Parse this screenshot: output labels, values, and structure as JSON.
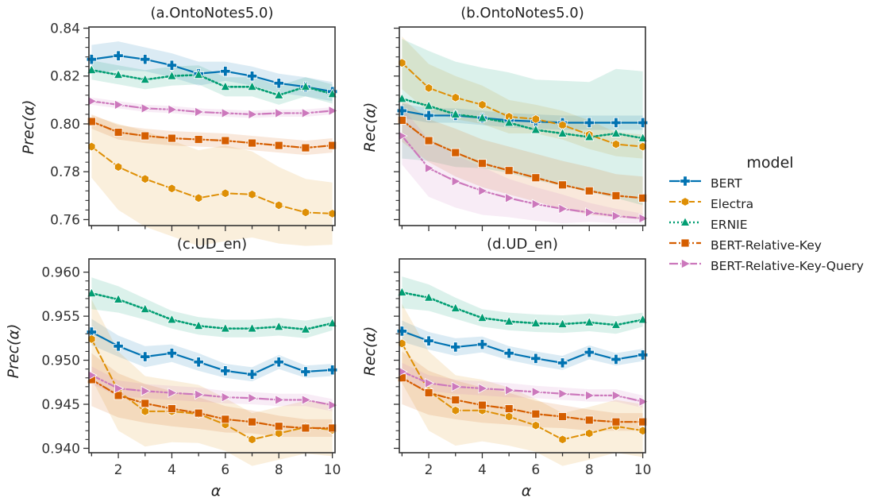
{
  "colors": {
    "BERT": "#0173b2",
    "Electra": "#de8f05",
    "ERNIE": "#029e73",
    "BERT-Relative-Key": "#d55e00",
    "BERT-Relative-Key-Query": "#cc78bc"
  },
  "legend": {
    "title": "model",
    "entries": [
      "BERT",
      "Electra",
      "ERNIE",
      "BERT-Relative-Key",
      "BERT-Relative-Key-Query"
    ]
  },
  "chart_data": [
    {
      "type": "line",
      "title": "(a.OntoNotes5.0)",
      "xlabel": "",
      "ylabel": "Prec(α)",
      "x": [
        1,
        2,
        3,
        4,
        5,
        6,
        7,
        8,
        9,
        10
      ],
      "xlim": [
        0.9,
        10.1
      ],
      "ylim": [
        0.7575,
        0.8405
      ],
      "xticks": [],
      "yticks": [
        0.76,
        0.78,
        0.8,
        0.82,
        0.84
      ],
      "ytick_labels": [
        "0.76",
        "0.78",
        "0.80",
        "0.82",
        "0.84"
      ],
      "series": [
        {
          "name": "BERT",
          "values": [
            0.827,
            0.8285,
            0.827,
            0.8245,
            0.821,
            0.822,
            0.82,
            0.817,
            0.8155,
            0.8135
          ],
          "band": [
            0.006,
            0.006,
            0.005,
            0.005,
            0.005,
            0.004,
            0.004,
            0.004,
            0.004,
            0.004
          ]
        },
        {
          "name": "Electra",
          "values": [
            0.7905,
            0.782,
            0.777,
            0.773,
            0.769,
            0.771,
            0.7705,
            0.766,
            0.763,
            0.7625
          ],
          "band": [
            0.013,
            0.018,
            0.02,
            0.02,
            0.02,
            0.02,
            0.018,
            0.016,
            0.014,
            0.013
          ]
        },
        {
          "name": "ERNIE",
          "values": [
            0.8225,
            0.8205,
            0.8185,
            0.82,
            0.8205,
            0.8155,
            0.8155,
            0.812,
            0.8155,
            0.8125
          ],
          "band": [
            0.004,
            0.004,
            0.004,
            0.004,
            0.004,
            0.004,
            0.004,
            0.004,
            0.004,
            0.004
          ]
        },
        {
          "name": "BERT-Relative-Key",
          "values": [
            0.801,
            0.7965,
            0.795,
            0.794,
            0.7935,
            0.793,
            0.792,
            0.791,
            0.79,
            0.791
          ],
          "band": [
            0.003,
            0.003,
            0.003,
            0.003,
            0.003,
            0.003,
            0.003,
            0.003,
            0.003,
            0.003
          ]
        },
        {
          "name": "BERT-Relative-Key-Query",
          "values": [
            0.8095,
            0.808,
            0.8065,
            0.806,
            0.805,
            0.8045,
            0.804,
            0.8045,
            0.8045,
            0.8055
          ],
          "band": [
            0.0015,
            0.0015,
            0.0015,
            0.0015,
            0.0015,
            0.0015,
            0.0015,
            0.0015,
            0.0015,
            0.0015
          ]
        }
      ]
    },
    {
      "type": "line",
      "title": "(b.OntoNotes5.0)",
      "xlabel": "",
      "ylabel": "Rec(α)",
      "x": [
        1,
        2,
        3,
        4,
        5,
        6,
        7,
        8,
        9,
        10
      ],
      "xlim": [
        0.9,
        10.1
      ],
      "ylim": [
        0.7575,
        0.8405
      ],
      "xticks": [],
      "yticks": [],
      "series": [
        {
          "name": "BERT",
          "values": [
            0.8055,
            0.8035,
            0.8035,
            0.8025,
            0.8015,
            0.801,
            0.8005,
            0.8005,
            0.8005,
            0.8005
          ],
          "band": [
            0.003,
            0.003,
            0.003,
            0.003,
            0.003,
            0.003,
            0.003,
            0.003,
            0.003,
            0.003
          ]
        },
        {
          "name": "Electra",
          "values": [
            0.8255,
            0.815,
            0.811,
            0.808,
            0.803,
            0.802,
            0.7995,
            0.7955,
            0.7915,
            0.7905
          ],
          "band": [
            0.011,
            0.01,
            0.009,
            0.008,
            0.007,
            0.006,
            0.006,
            0.006,
            0.005,
            0.005
          ]
        },
        {
          "name": "ERNIE",
          "values": [
            0.8105,
            0.8075,
            0.804,
            0.8025,
            0.8005,
            0.7975,
            0.796,
            0.7945,
            0.796,
            0.794
          ],
          "band": [
            0.025,
            0.023,
            0.022,
            0.021,
            0.021,
            0.021,
            0.022,
            0.023,
            0.027,
            0.028
          ]
        },
        {
          "name": "BERT-Relative-Key",
          "values": [
            0.8015,
            0.793,
            0.788,
            0.7835,
            0.7805,
            0.7775,
            0.7745,
            0.772,
            0.77,
            0.769
          ],
          "band": [
            0.009,
            0.009,
            0.01,
            0.01,
            0.01,
            0.01,
            0.01,
            0.01,
            0.009,
            0.009
          ]
        },
        {
          "name": "BERT-Relative-Key-Query",
          "values": [
            0.795,
            0.7815,
            0.776,
            0.772,
            0.769,
            0.7665,
            0.7645,
            0.763,
            0.7615,
            0.7605
          ],
          "band": [
            0.012,
            0.012,
            0.011,
            0.01,
            0.008,
            0.007,
            0.006,
            0.004,
            0.003,
            0.002
          ]
        }
      ]
    },
    {
      "type": "line",
      "title": "(c.UD_en)",
      "xlabel": "α",
      "ylabel": "Prec(α)",
      "x": [
        1,
        2,
        3,
        4,
        5,
        6,
        7,
        8,
        9,
        10
      ],
      "xlim": [
        0.9,
        10.1
      ],
      "ylim": [
        0.9395,
        0.9615
      ],
      "xticks": [
        2,
        4,
        6,
        8,
        10
      ],
      "xtick_labels": [
        "2",
        "4",
        "6",
        "8",
        "10"
      ],
      "yticks": [
        0.94,
        0.945,
        0.95,
        0.955,
        0.96
      ],
      "ytick_labels": [
        "0.940",
        "0.945",
        "0.950",
        "0.955",
        "0.960"
      ],
      "series": [
        {
          "name": "BERT",
          "values": [
            0.9532,
            0.9516,
            0.9504,
            0.9508,
            0.9498,
            0.9488,
            0.9484,
            0.9498,
            0.9487,
            0.9489
          ],
          "band": [
            0.0015,
            0.0012,
            0.0012,
            0.001,
            0.001,
            0.0008,
            0.0008,
            0.0008,
            0.0007,
            0.0007
          ]
        },
        {
          "name": "Electra",
          "values": [
            0.9524,
            0.9465,
            0.9442,
            0.9442,
            0.9439,
            0.9427,
            0.941,
            0.9417,
            0.9424,
            0.9421
          ],
          "band": [
            0.0045,
            0.0045,
            0.004,
            0.0035,
            0.0033,
            0.003,
            0.003,
            0.003,
            0.003,
            0.003
          ]
        },
        {
          "name": "ERNIE",
          "values": [
            0.9576,
            0.9569,
            0.9558,
            0.9546,
            0.9539,
            0.9536,
            0.9536,
            0.9538,
            0.9535,
            0.9542
          ],
          "band": [
            0.0018,
            0.0015,
            0.0012,
            0.001,
            0.001,
            0.001,
            0.001,
            0.001,
            0.001,
            0.0008
          ]
        },
        {
          "name": "BERT-Relative-Key",
          "values": [
            0.9478,
            0.946,
            0.9451,
            0.9445,
            0.944,
            0.9433,
            0.943,
            0.9425,
            0.9423,
            0.9423
          ],
          "band": [
            0.003,
            0.0025,
            0.0022,
            0.002,
            0.0018,
            0.0015,
            0.0013,
            0.0012,
            0.001,
            0.001
          ]
        },
        {
          "name": "BERT-Relative-Key-Query",
          "values": [
            0.9483,
            0.9468,
            0.9465,
            0.9463,
            0.9461,
            0.9458,
            0.9457,
            0.9455,
            0.9455,
            0.9449
          ],
          "band": [
            0.001,
            0.0009,
            0.0008,
            0.0008,
            0.0008,
            0.0007,
            0.0007,
            0.0007,
            0.0007,
            0.0007
          ]
        }
      ]
    },
    {
      "type": "line",
      "title": "(d.UD_en)",
      "xlabel": "α",
      "ylabel": "Rec(α)",
      "x": [
        1,
        2,
        3,
        4,
        5,
        6,
        7,
        8,
        9,
        10
      ],
      "xlim": [
        0.9,
        10.1
      ],
      "ylim": [
        0.9395,
        0.9615
      ],
      "xticks": [
        2,
        4,
        6,
        8,
        10
      ],
      "xtick_labels": [
        "2",
        "4",
        "6",
        "8",
        "10"
      ],
      "yticks": [],
      "series": [
        {
          "name": "BERT",
          "values": [
            0.9533,
            0.9522,
            0.9515,
            0.9518,
            0.9508,
            0.9502,
            0.9497,
            0.9509,
            0.9501,
            0.9506
          ],
          "band": [
            0.0012,
            0.001,
            0.001,
            0.0009,
            0.0008,
            0.0008,
            0.0008,
            0.0008,
            0.0007,
            0.0007
          ]
        },
        {
          "name": "Electra",
          "values": [
            0.9519,
            0.9465,
            0.9443,
            0.9443,
            0.9436,
            0.9426,
            0.941,
            0.9417,
            0.9425,
            0.942
          ],
          "band": [
            0.0045,
            0.0045,
            0.004,
            0.0035,
            0.0033,
            0.003,
            0.003,
            0.003,
            0.003,
            0.003
          ]
        },
        {
          "name": "ERNIE",
          "values": [
            0.9577,
            0.9571,
            0.9559,
            0.9548,
            0.9544,
            0.9542,
            0.9541,
            0.9543,
            0.954,
            0.9546
          ],
          "band": [
            0.0018,
            0.0015,
            0.0012,
            0.001,
            0.001,
            0.001,
            0.001,
            0.001,
            0.001,
            0.0008
          ]
        },
        {
          "name": "BERT-Relative-Key",
          "values": [
            0.948,
            0.9463,
            0.9455,
            0.9449,
            0.9445,
            0.9439,
            0.9436,
            0.9432,
            0.943,
            0.943
          ],
          "band": [
            0.003,
            0.0025,
            0.0022,
            0.002,
            0.0018,
            0.0015,
            0.0013,
            0.0012,
            0.001,
            0.001
          ]
        },
        {
          "name": "BERT-Relative-Key-Query",
          "values": [
            0.9487,
            0.9474,
            0.947,
            0.9468,
            0.9466,
            0.9464,
            0.9462,
            0.946,
            0.946,
            0.9453
          ],
          "band": [
            0.001,
            0.0009,
            0.0008,
            0.0008,
            0.0008,
            0.0007,
            0.0007,
            0.0007,
            0.0007,
            0.0007
          ]
        }
      ]
    }
  ]
}
